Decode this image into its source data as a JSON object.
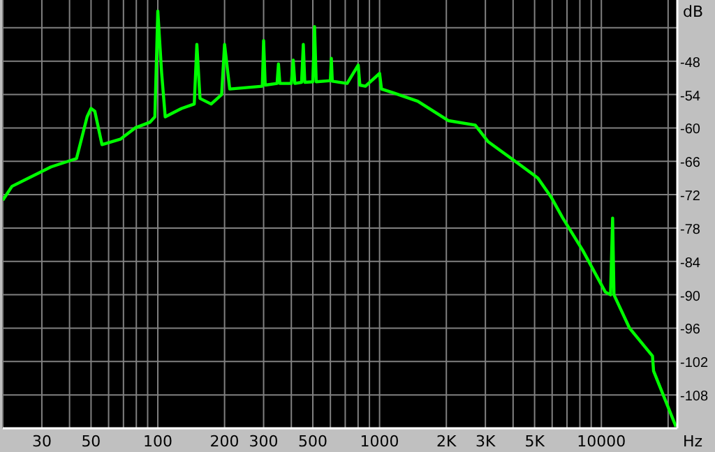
{
  "chart_data": {
    "type": "line",
    "xlabel": "Hz",
    "ylabel": "dB",
    "log": "x",
    "grid": true,
    "marker": "none",
    "line_style": "solid",
    "xlim": [
      20,
      22000
    ],
    "ylim": [
      -114,
      -37
    ],
    "xticks": [
      {
        "value": 20,
        "label": null
      },
      30,
      {
        "value": 40,
        "label": null
      },
      50,
      {
        "value": 60,
        "label": null
      },
      {
        "value": 70,
        "label": null
      },
      {
        "value": 80,
        "label": null
      },
      {
        "value": 90,
        "label": null
      },
      100,
      200,
      300,
      {
        "value": 400,
        "label": null
      },
      500,
      {
        "value": 600,
        "label": null
      },
      {
        "value": 700,
        "label": null
      },
      {
        "value": 800,
        "label": null
      },
      {
        "value": 900,
        "label": null
      },
      1000,
      {
        "value": 2000,
        "label": "2K"
      },
      {
        "value": 3000,
        "label": "3K"
      },
      {
        "value": 4000,
        "label": null
      },
      {
        "value": 5000,
        "label": "5K"
      },
      {
        "value": 6000,
        "label": null
      },
      {
        "value": 7000,
        "label": null
      },
      {
        "value": 8000,
        "label": null
      },
      {
        "value": 9000,
        "label": null
      },
      10000,
      {
        "value": 20000,
        "label": null
      }
    ],
    "yticks": [
      {
        "value": -42,
        "label": null
      },
      -48,
      -54,
      -60,
      -66,
      -72,
      -78,
      -84,
      -90,
      -96,
      -102,
      -108
    ],
    "series": [
      {
        "color": "#00ff00",
        "x": [
          20,
          22,
          33,
          43,
          48,
          50,
          52,
          56,
          68,
          79,
          92,
          97,
          100,
          104,
          108,
          128,
          146,
          150,
          155,
          174,
          194,
          200,
          211,
          296,
          300,
          305,
          345,
          350,
          355,
          400,
          408,
          415,
          445,
          453,
          460,
          500,
          509,
          518,
          600,
          606,
          612,
          714,
          801,
          815,
          863,
          1000,
          1020,
          1155,
          1486,
          2047,
          2700,
          3090,
          4150,
          5170,
          5950,
          6700,
          8240,
          10420,
          11000,
          11240,
          11400,
          13400,
          17000,
          17200,
          21700
        ],
        "values": [
          -73,
          -70.5,
          -67,
          -65.5,
          -58,
          -56.5,
          -57,
          -63,
          -62,
          -60,
          -59,
          -58,
          -39,
          -50,
          -58,
          -56.5,
          -55.7,
          -45,
          -54.7,
          -55.7,
          -54,
          -45,
          -53,
          -52.5,
          -44.3,
          -52.3,
          -52,
          -48.5,
          -52,
          -52,
          -47.8,
          -52,
          -51.8,
          -45,
          -51.8,
          -51.7,
          -41.8,
          -51.7,
          -51.5,
          -47.5,
          -51.6,
          -52,
          -48.7,
          -52.3,
          -52.5,
          -50.2,
          -53,
          -53.7,
          -55.2,
          -58.7,
          -59.5,
          -62.5,
          -66.2,
          -69,
          -72.5,
          -76.2,
          -82,
          -89.5,
          -90,
          -76.2,
          -90,
          -96,
          -101,
          -103.7,
          -113.7
        ]
      }
    ]
  }
}
